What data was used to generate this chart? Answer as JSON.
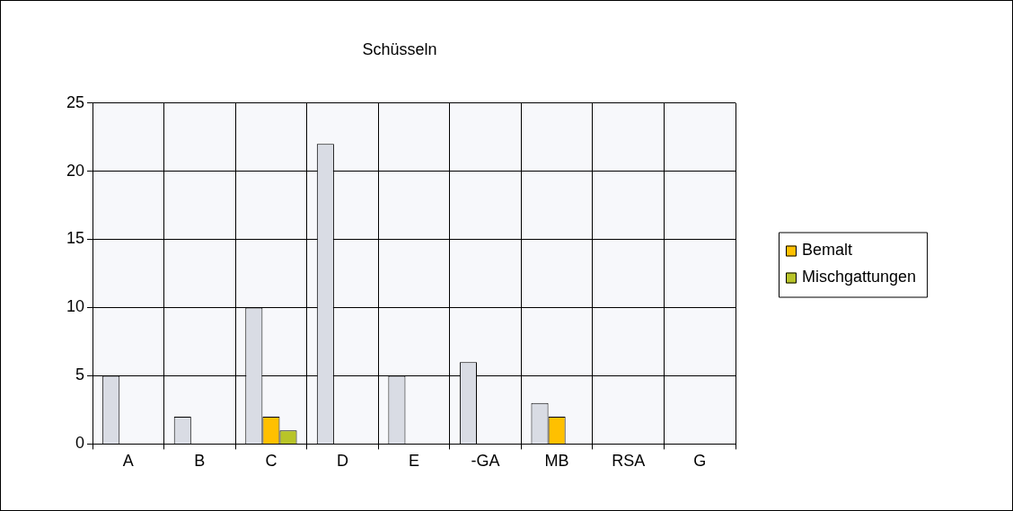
{
  "chart_data": {
    "type": "bar",
    "title": "Schüsseln",
    "categories": [
      "A",
      "B",
      "C",
      "D",
      "E",
      "-GA",
      "MB",
      "RSA",
      "G"
    ],
    "series": [
      {
        "color": "#d9dce4",
        "values": [
          5,
          2,
          10,
          22,
          5,
          6,
          3,
          null,
          null
        ]
      },
      {
        "name": "Bemalt",
        "color": "#ffc000",
        "values": [
          null,
          null,
          2,
          null,
          null,
          null,
          2,
          null,
          null
        ]
      },
      {
        "name": "Mischgattungen",
        "color": "#b8c428",
        "values": [
          null,
          null,
          1,
          null,
          null,
          null,
          null,
          null,
          null
        ]
      }
    ],
    "ylim": [
      0,
      25
    ],
    "yticks": [
      0,
      5,
      10,
      15,
      20,
      25
    ],
    "grid": true,
    "legend": "right"
  }
}
